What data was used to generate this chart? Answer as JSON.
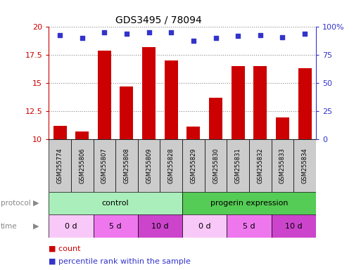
{
  "title": "GDS3495 / 78094",
  "samples": [
    "GSM255774",
    "GSM255806",
    "GSM255807",
    "GSM255808",
    "GSM255809",
    "GSM255828",
    "GSM255829",
    "GSM255830",
    "GSM255831",
    "GSM255832",
    "GSM255833",
    "GSM255834"
  ],
  "counts": [
    11.2,
    10.7,
    17.9,
    14.7,
    18.2,
    17.0,
    11.1,
    13.7,
    16.5,
    16.5,
    11.9,
    16.3
  ],
  "percentile_ranks": [
    93,
    90,
    95,
    94,
    95,
    95,
    88,
    90,
    92,
    93,
    91,
    94
  ],
  "ylim_left": [
    10,
    20
  ],
  "ylim_right": [
    0,
    100
  ],
  "yticks_left": [
    10,
    12.5,
    15,
    17.5,
    20
  ],
  "yticks_right": [
    0,
    25,
    50,
    75,
    100
  ],
  "ytick_labels_left": [
    "10",
    "12.5",
    "15",
    "17.5",
    "20"
  ],
  "ytick_labels_right": [
    "0",
    "25",
    "50",
    "75",
    "100%"
  ],
  "bar_color": "#cc0000",
  "dot_color": "#3333cc",
  "protocol_groups": [
    {
      "label": "control",
      "start": 0,
      "end": 6,
      "color": "#aaeebb"
    },
    {
      "label": "progerin expression",
      "start": 6,
      "end": 12,
      "color": "#55cc55"
    }
  ],
  "time_groups": [
    {
      "label": "0 d",
      "start": 0,
      "end": 2,
      "color": "#f8c8f8"
    },
    {
      "label": "5 d",
      "start": 2,
      "end": 4,
      "color": "#ee77ee"
    },
    {
      "label": "10 d",
      "start": 4,
      "end": 6,
      "color": "#cc44cc"
    },
    {
      "label": "0 d",
      "start": 6,
      "end": 8,
      "color": "#f8c8f8"
    },
    {
      "label": "5 d",
      "start": 8,
      "end": 10,
      "color": "#ee77ee"
    },
    {
      "label": "10 d",
      "start": 10,
      "end": 12,
      "color": "#cc44cc"
    }
  ],
  "grid_color": "#888888",
  "left_axis_color": "#cc0000",
  "right_axis_color": "#3333cc",
  "sample_box_color": "#cccccc",
  "bg_color": "#ffffff"
}
